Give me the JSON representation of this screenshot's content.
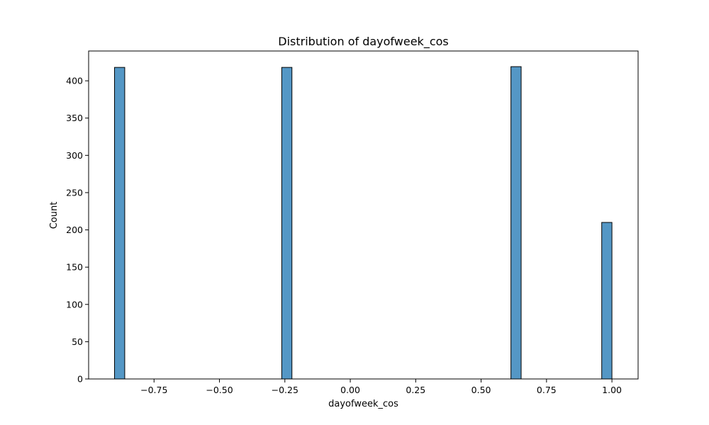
{
  "chart_data": {
    "type": "bar",
    "title": "Distribution of dayofweek_cos",
    "xlabel": "dayofweek_cos",
    "ylabel": "Count",
    "xlim": [
      -1.0,
      1.1
    ],
    "ylim": [
      0,
      440
    ],
    "xticks": [
      -0.75,
      -0.5,
      -0.25,
      0.0,
      0.25,
      0.5,
      0.75,
      1.0
    ],
    "xtick_labels": [
      "−0.75",
      "−0.50",
      "−0.25",
      "0.00",
      "0.25",
      "0.50",
      "0.75",
      "1.00"
    ],
    "yticks": [
      0,
      50,
      100,
      150,
      200,
      250,
      300,
      350,
      400
    ],
    "yticklabels": [
      "0",
      "50",
      "100",
      "150",
      "200",
      "250",
      "300",
      "350",
      "400"
    ],
    "bins": [
      {
        "x0": -0.901,
        "x1": -0.862,
        "count": 418
      },
      {
        "x0": -0.262,
        "x1": -0.223,
        "count": 418
      },
      {
        "x0": 0.614,
        "x1": 0.653,
        "count": 419
      },
      {
        "x0": 0.961,
        "x1": 1.0,
        "count": 210
      }
    ],
    "bar_color": "#5497c5",
    "edge_color": "#000000",
    "grid": false
  }
}
